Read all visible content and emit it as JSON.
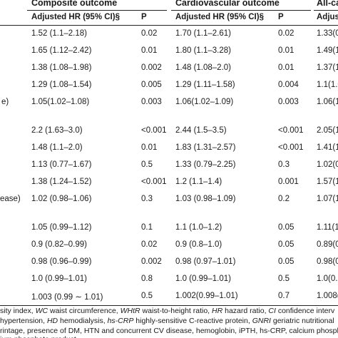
{
  "headers": {
    "composite": "Composite outcome",
    "cardiovascular": "Cardiovascular outcome",
    "allcause": "All-ca"
  },
  "subheaders": {
    "composite_hr": "Adjusted HR (95% CI)§",
    "composite_p": "P",
    "cardio_hr": "Adjusted HR (95% CI)§",
    "cardio_p": "P",
    "allcause_hr": "Adjus"
  },
  "rows": [
    {
      "label": "",
      "c_hr": "1.52 (1.1–2.18)",
      "c_p": "0.02",
      "cv_hr": "1.70 (1.1–2.61)",
      "cv_p": "0.02",
      "ac": "1.33(0"
    },
    {
      "label": "",
      "c_hr": "1.65 (1.12–2.42)",
      "c_p": "0.01",
      "cv_hr": "1.80 (1.1–3.28)",
      "cv_p": "0.01",
      "ac": "1.49(1"
    },
    {
      "label": "",
      "c_hr": "1.38 (1.08–1.98)",
      "c_p": "0.002",
      "cv_hr": "1.48 (1.08–2.0)",
      "cv_p": "0.01",
      "ac": "1.37(1"
    },
    {
      "label": "",
      "c_hr": "1.29 (1.08–1.54)",
      "c_p": "0.005",
      "cv_hr": "1.29 (1.11–1.58)",
      "cv_p": "0.004",
      "ac": "1.1(1.0"
    },
    {
      "label": "e)",
      "c_hr": "1.05(1.02–1.08)",
      "c_p": "0.003",
      "cv_hr": "1.06(1.02–1.09)",
      "cv_p": "0.003",
      "ac": "1.06(1"
    },
    {
      "label": "",
      "c_hr": "2.2 (1.63–3.0)",
      "c_p": "<0.001",
      "cv_hr": "2.44 (1.5–3.5)",
      "cv_p": "<0.001",
      "ac": "2.05(1"
    },
    {
      "label": "",
      "c_hr": "1.48 (1.1–2.0)",
      "c_p": "0.01",
      "cv_hr": "1.83 (1.31–2.57)",
      "cv_p": "<0.001",
      "ac": "1.41(1"
    },
    {
      "label": "",
      "c_hr": "1.13 (0.77–1.67)",
      "c_p": "0.5",
      "cv_hr": "1.33 (0.79–2.25)",
      "cv_p": "0.3",
      "ac": "1.02(0"
    },
    {
      "label": "",
      "c_hr": "1.38 (1.24–1.52)",
      "c_p": "<0.001",
      "cv_hr": "1.2 (1.1–1.4)",
      "cv_p": "0.001",
      "ac": "1.57(1"
    },
    {
      "label": "ease)",
      "c_hr": "1.02 (0.98–1.06)",
      "c_p": "0.3",
      "cv_hr": "1.03 (0.98–1.09)",
      "cv_p": "0.2",
      "ac": "1.07(1"
    },
    {
      "label": "",
      "c_hr": "1.05 (0.99–1.12)",
      "c_p": "0.1",
      "cv_hr": "1.1 (1.0–1.2)",
      "cv_p": "0.05",
      "ac": "1.11(1"
    },
    {
      "label": "",
      "c_hr": "0.9 (0.82–0.99)",
      "c_p": "0.02",
      "cv_hr": "0.9 (0.8–1.0)",
      "cv_p": "0.05",
      "ac": "0.89(0"
    },
    {
      "label": "",
      "c_hr": "0.98 (0.96–0.99)",
      "c_p": "0.002",
      "cv_hr": "0.98 (0.97–1.01)",
      "cv_p": "0.05",
      "ac": "0.98(0"
    },
    {
      "label": "",
      "c_hr": "1.0 (0.99–1.01)",
      "c_p": "0.8",
      "cv_hr": "1.0 (0.99–1.01)",
      "cv_p": "0.5",
      "ac": "1.0(0.9"
    },
    {
      "label": "",
      "c_hr": "1.003 (0.99 ∼ 1.01)",
      "c_p": "0.5",
      "cv_hr": "1.002(0.99–1.01)",
      "cv_p": "0.7",
      "ac": "1.008("
    }
  ],
  "footnotes": [
    [
      {
        "t": "sity index, ",
        "i": false
      },
      {
        "t": "WC",
        "i": true
      },
      {
        "t": " waist circumference, ",
        "i": false
      },
      {
        "t": "WHtR",
        "i": true
      },
      {
        "t": " waist-to-height ratio, ",
        "i": false
      },
      {
        "t": "HR",
        "i": true
      },
      {
        "t": " hazard ratio, ",
        "i": false
      },
      {
        "t": "CI",
        "i": true
      },
      {
        "t": " confidence interv",
        "i": false
      }
    ],
    [
      {
        "t": " hypertension, ",
        "i": false
      },
      {
        "t": "HD",
        "i": true
      },
      {
        "t": " hemodialysis, ",
        "i": false
      },
      {
        "t": "hs-CRP",
        "i": true
      },
      {
        "t": " highly-sensitive C-reactive protein, ",
        "i": false
      },
      {
        "t": "GNRI",
        "i": true
      },
      {
        "t": " geriatric nutritional",
        "i": false
      }
    ],
    [
      {
        "t": "rintage, presence of DM, HTN and concurrent CV disease, hemoglobin, iPTH, hs-CRP, calcium phosph",
        "i": false
      }
    ],
    [
      {
        "t": "ium phosphate product",
        "i": false
      }
    ]
  ]
}
